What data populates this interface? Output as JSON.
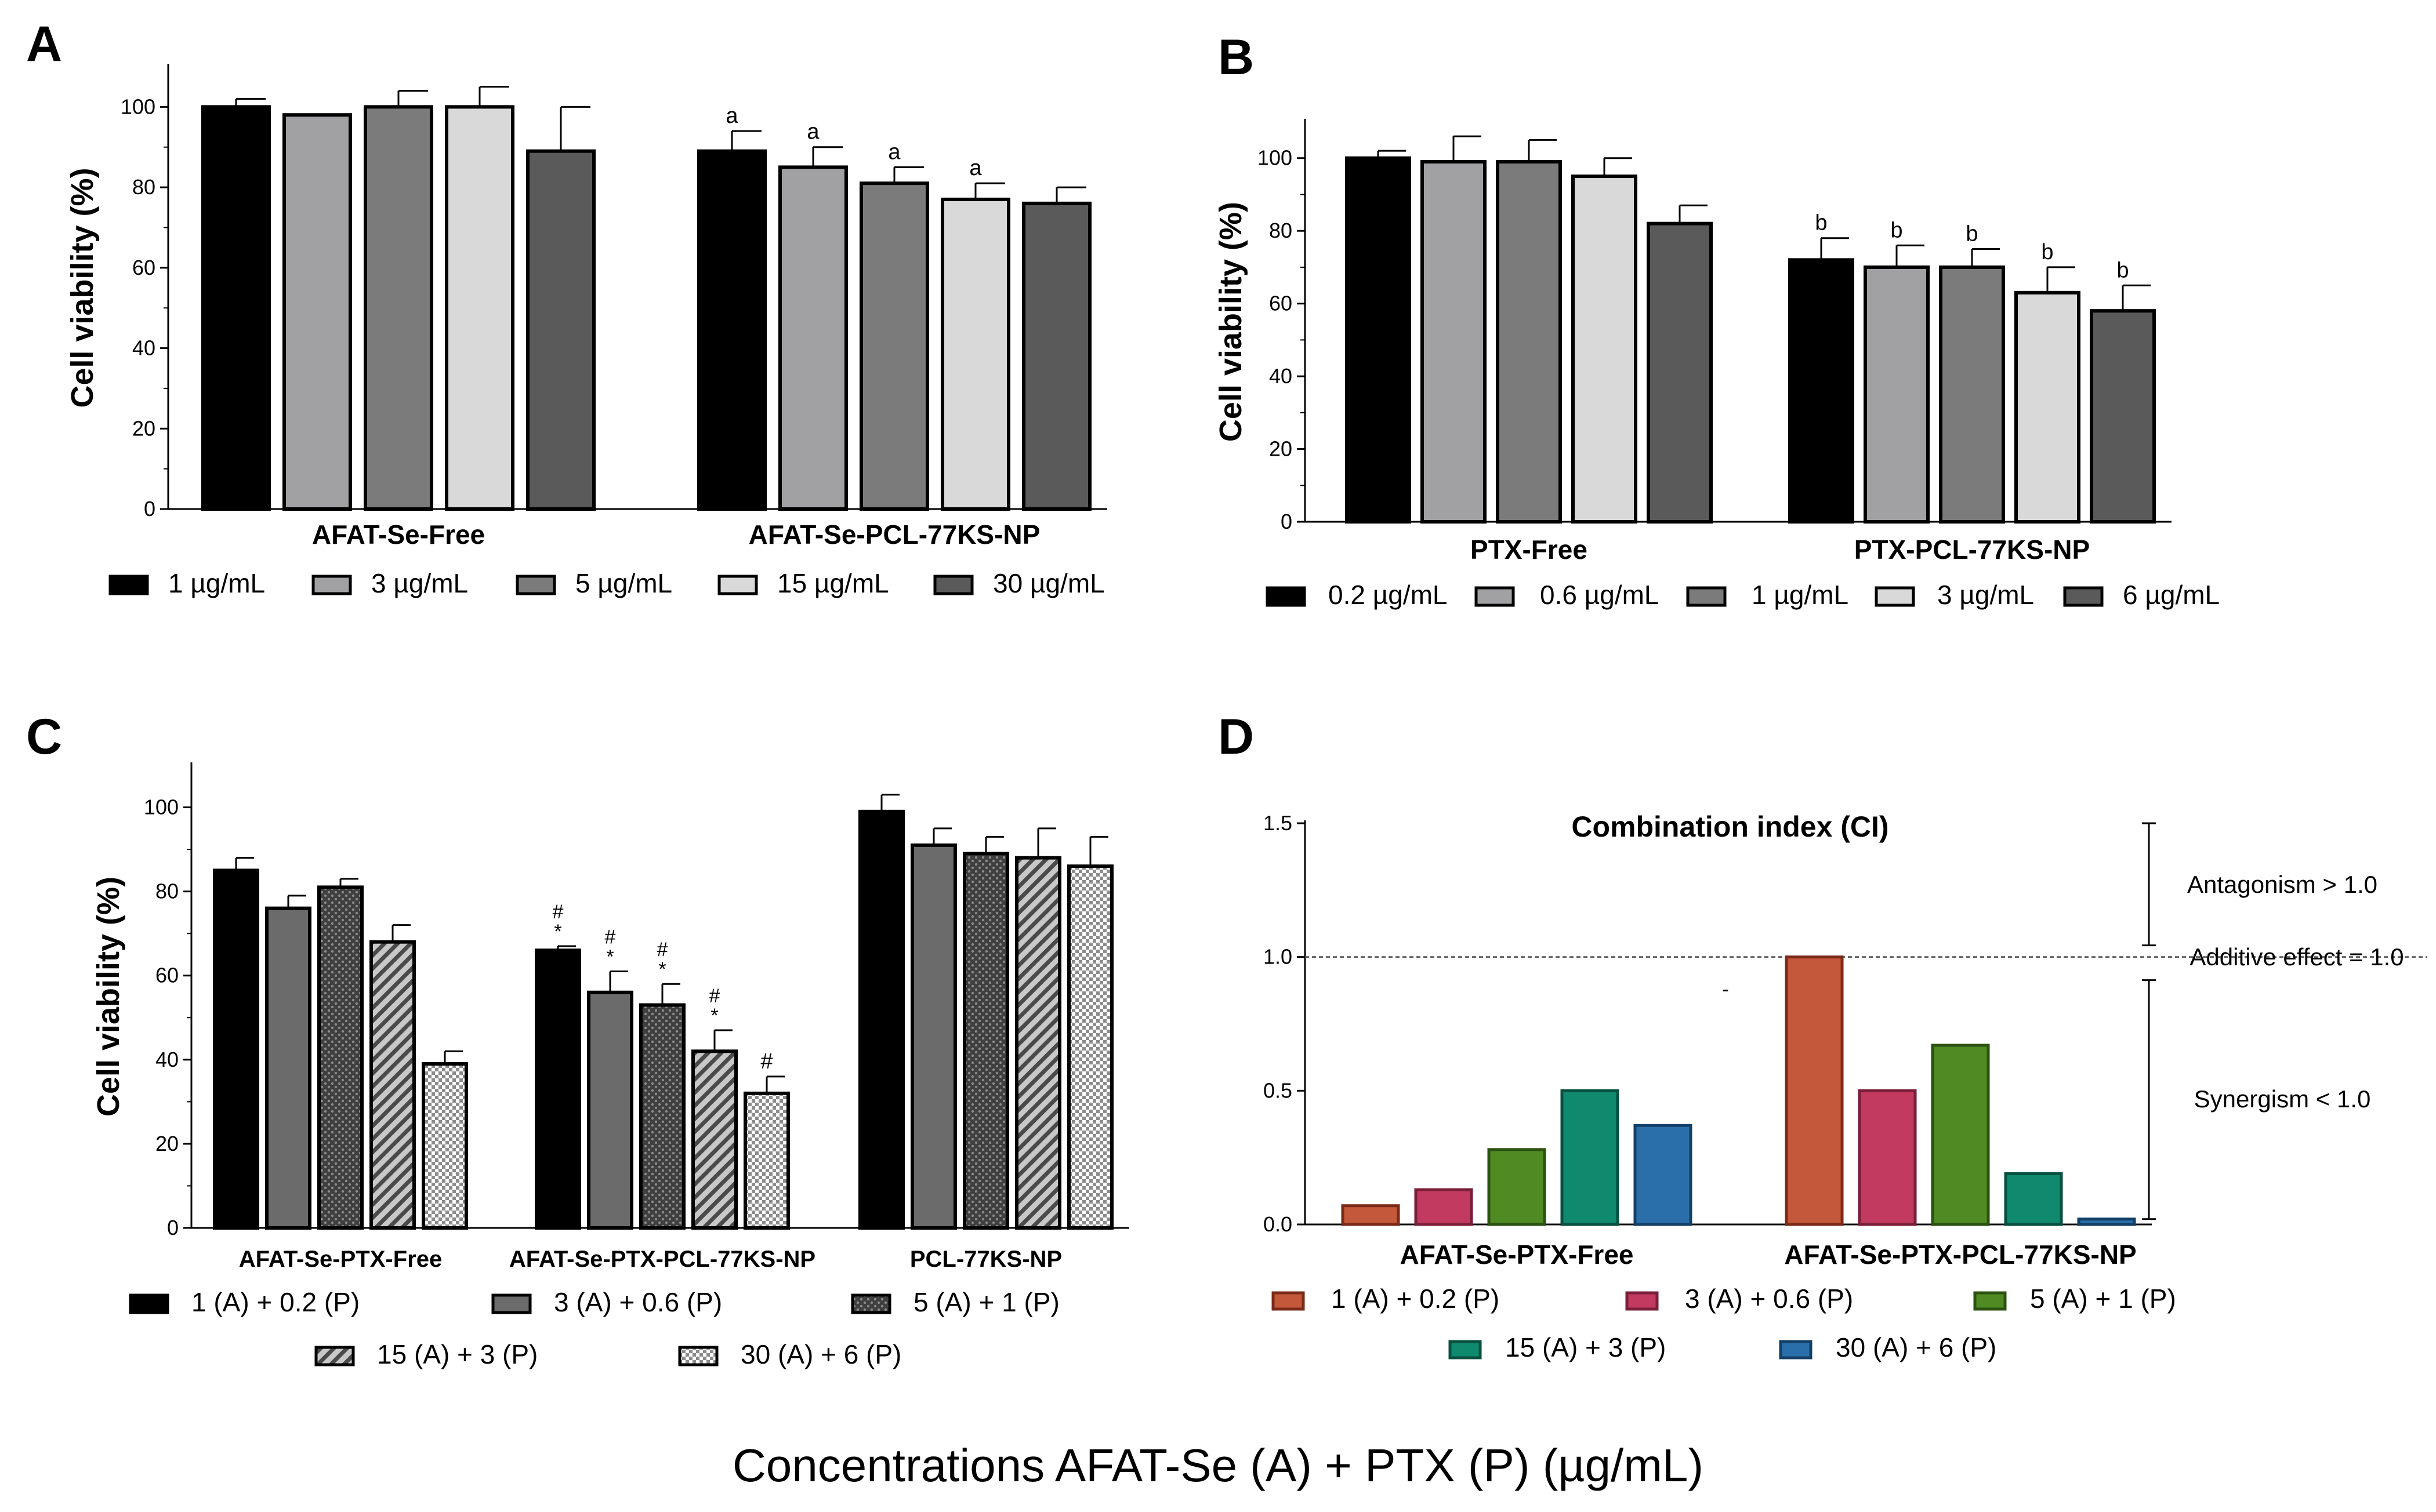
{
  "footer_label": "Concentrations AFAT-Se (A) + PTX (P) (µg/mL)",
  "chart_data": [
    {
      "panel": "A",
      "type": "bar",
      "ylabel": "Cell viability (%)",
      "ylim": [
        0,
        110
      ],
      "yticks": [
        0,
        20,
        40,
        60,
        80,
        100
      ],
      "categories": [
        "AFAT-Se-Free",
        "AFAT-Se-PCL-77KS-NP"
      ],
      "series": [
        {
          "name": "1 µg/mL",
          "color": "#000000",
          "pattern": "solid",
          "values": [
            100,
            89
          ],
          "errors": [
            2,
            5
          ],
          "labels": [
            "",
            "a"
          ]
        },
        {
          "name": "3 µg/mL",
          "color": "#a1a1a4",
          "pattern": "solid",
          "values": [
            98,
            85
          ],
          "errors": [
            0,
            5
          ],
          "labels": [
            "",
            "a"
          ]
        },
        {
          "name": "5 µg/mL",
          "color": "#7b7b7b",
          "pattern": "solid",
          "values": [
            100,
            81
          ],
          "errors": [
            4,
            4
          ],
          "labels": [
            "",
            "a"
          ]
        },
        {
          "name": "15 µg/mL",
          "color": "#d9d9d9",
          "pattern": "solid",
          "values": [
            100,
            77
          ],
          "errors": [
            5,
            4
          ],
          "labels": [
            "",
            "a"
          ]
        },
        {
          "name": "30 µg/mL",
          "color": "#5a5a5a",
          "pattern": "solid",
          "values": [
            89,
            76
          ],
          "errors": [
            11,
            4
          ],
          "labels": [
            "",
            ""
          ]
        }
      ]
    },
    {
      "panel": "B",
      "type": "bar",
      "ylabel": "Cell viability (%)",
      "ylim": [
        0,
        110
      ],
      "yticks": [
        0,
        20,
        40,
        60,
        80,
        100
      ],
      "categories": [
        "PTX-Free",
        "PTX-PCL-77KS-NP"
      ],
      "series": [
        {
          "name": "0.2 µg/mL",
          "color": "#000000",
          "pattern": "solid",
          "values": [
            100,
            72
          ],
          "errors": [
            2,
            6
          ],
          "labels": [
            "",
            "b"
          ]
        },
        {
          "name": "0.6 µg/mL",
          "color": "#a1a1a4",
          "pattern": "solid",
          "values": [
            99,
            70
          ],
          "errors": [
            7,
            6
          ],
          "labels": [
            "",
            "b"
          ]
        },
        {
          "name": "1 µg/mL",
          "color": "#7b7b7b",
          "pattern": "solid",
          "values": [
            99,
            70
          ],
          "errors": [
            6,
            5
          ],
          "labels": [
            "",
            "b"
          ]
        },
        {
          "name": "3 µg/mL",
          "color": "#d9d9d9",
          "pattern": "solid",
          "values": [
            95,
            63
          ],
          "errors": [
            5,
            7
          ],
          "labels": [
            "",
            "b"
          ]
        },
        {
          "name": "6 µg/mL",
          "color": "#5a5a5a",
          "pattern": "solid",
          "values": [
            82,
            58
          ],
          "errors": [
            5,
            7
          ],
          "labels": [
            "",
            "b"
          ]
        }
      ]
    },
    {
      "panel": "C",
      "type": "bar",
      "ylabel": "Cell viability (%)",
      "ylim": [
        0,
        110
      ],
      "yticks": [
        0,
        20,
        40,
        60,
        80,
        100
      ],
      "categories": [
        "AFAT-Se-PTX-Free",
        "AFAT-Se-PTX-PCL-77KS-NP",
        "PCL-77KS-NP"
      ],
      "series": [
        {
          "name": "1 (A) + 0.2 (P)",
          "color": "#000000",
          "pattern": "solid",
          "values": [
            85,
            66,
            99
          ],
          "errors": [
            3,
            1,
            4
          ],
          "labels": [
            "",
            "#\n*",
            ""
          ]
        },
        {
          "name": "3 (A) + 0.6 (P)",
          "color": "#6b6b6b",
          "pattern": "solid",
          "values": [
            76,
            56,
            91
          ],
          "errors": [
            3,
            5,
            4
          ],
          "labels": [
            "",
            "#\n*",
            ""
          ]
        },
        {
          "name": "5 (A) + 1 (P)",
          "color": "#555555",
          "pattern": "dots",
          "values": [
            81,
            53,
            89
          ],
          "errors": [
            2,
            5,
            4
          ],
          "labels": [
            "",
            "#\n*",
            ""
          ]
        },
        {
          "name": "15 (A) + 3 (P)",
          "color": "#999999",
          "pattern": "hatch",
          "values": [
            68,
            42,
            88
          ],
          "errors": [
            4,
            5,
            7
          ],
          "labels": [
            "",
            "#\n*",
            ""
          ]
        },
        {
          "name": "30 (A) + 6 (P)",
          "color": "#cccccc",
          "pattern": "check",
          "values": [
            39,
            32,
            86
          ],
          "errors": [
            3,
            4,
            7
          ],
          "labels": [
            "",
            "#",
            ""
          ]
        }
      ]
    },
    {
      "panel": "D",
      "type": "bar",
      "title": "Combination index (CI)",
      "ylim": [
        0,
        1.5
      ],
      "yticks": [
        0.0,
        0.5,
        1.0,
        1.5
      ],
      "reference_line": 1.0,
      "categories": [
        "AFAT-Se-PTX-Free",
        "AFAT-Se-PTX-PCL-77KS-NP"
      ],
      "regions": [
        "Antagonism > 1.0",
        "Additive effect = 1.0",
        "Synergism < 1.0"
      ],
      "stray_mark": "-",
      "series": [
        {
          "name": "1 (A) + 0.2 (P)",
          "color": "#c4583a",
          "stroke": "#7a2a18",
          "values": [
            0.07,
            1.0
          ]
        },
        {
          "name": "3 (A) + 0.6 (P)",
          "color": "#c23a60",
          "stroke": "#7a1f3a",
          "values": [
            0.13,
            0.5
          ]
        },
        {
          "name": "5 (A) + 1 (P)",
          "color": "#4f8a22",
          "stroke": "#2b5210",
          "values": [
            0.28,
            0.67
          ]
        },
        {
          "name": "15 (A) + 3 (P)",
          "color": "#0f8a6e",
          "stroke": "#075040",
          "values": [
            0.5,
            0.19
          ]
        },
        {
          "name": "30 (A) + 6 (P)",
          "color": "#2a6faa",
          "stroke": "#143f66",
          "values": [
            0.37,
            0.02
          ]
        }
      ]
    }
  ]
}
